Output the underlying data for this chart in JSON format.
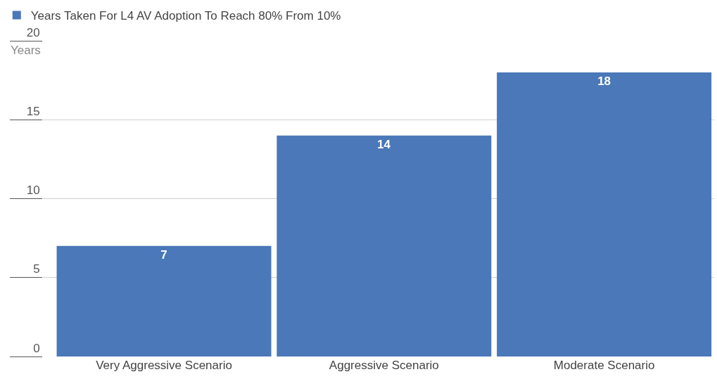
{
  "chart_data": {
    "type": "bar",
    "ylabel": "Years",
    "categories": [
      "Very Aggressive Scenario",
      "Aggressive Scenario",
      "Moderate Scenario"
    ],
    "series": [
      {
        "name": "Years Taken For L4 AV Adoption To Reach 80% From 10%",
        "color": "#4a78b8",
        "values": [
          7,
          14,
          18
        ]
      }
    ],
    "ylim": [
      0,
      20
    ],
    "yticks": [
      0,
      5,
      10,
      15,
      20
    ],
    "grid": "y",
    "legend": "top left",
    "data_labels": true
  }
}
